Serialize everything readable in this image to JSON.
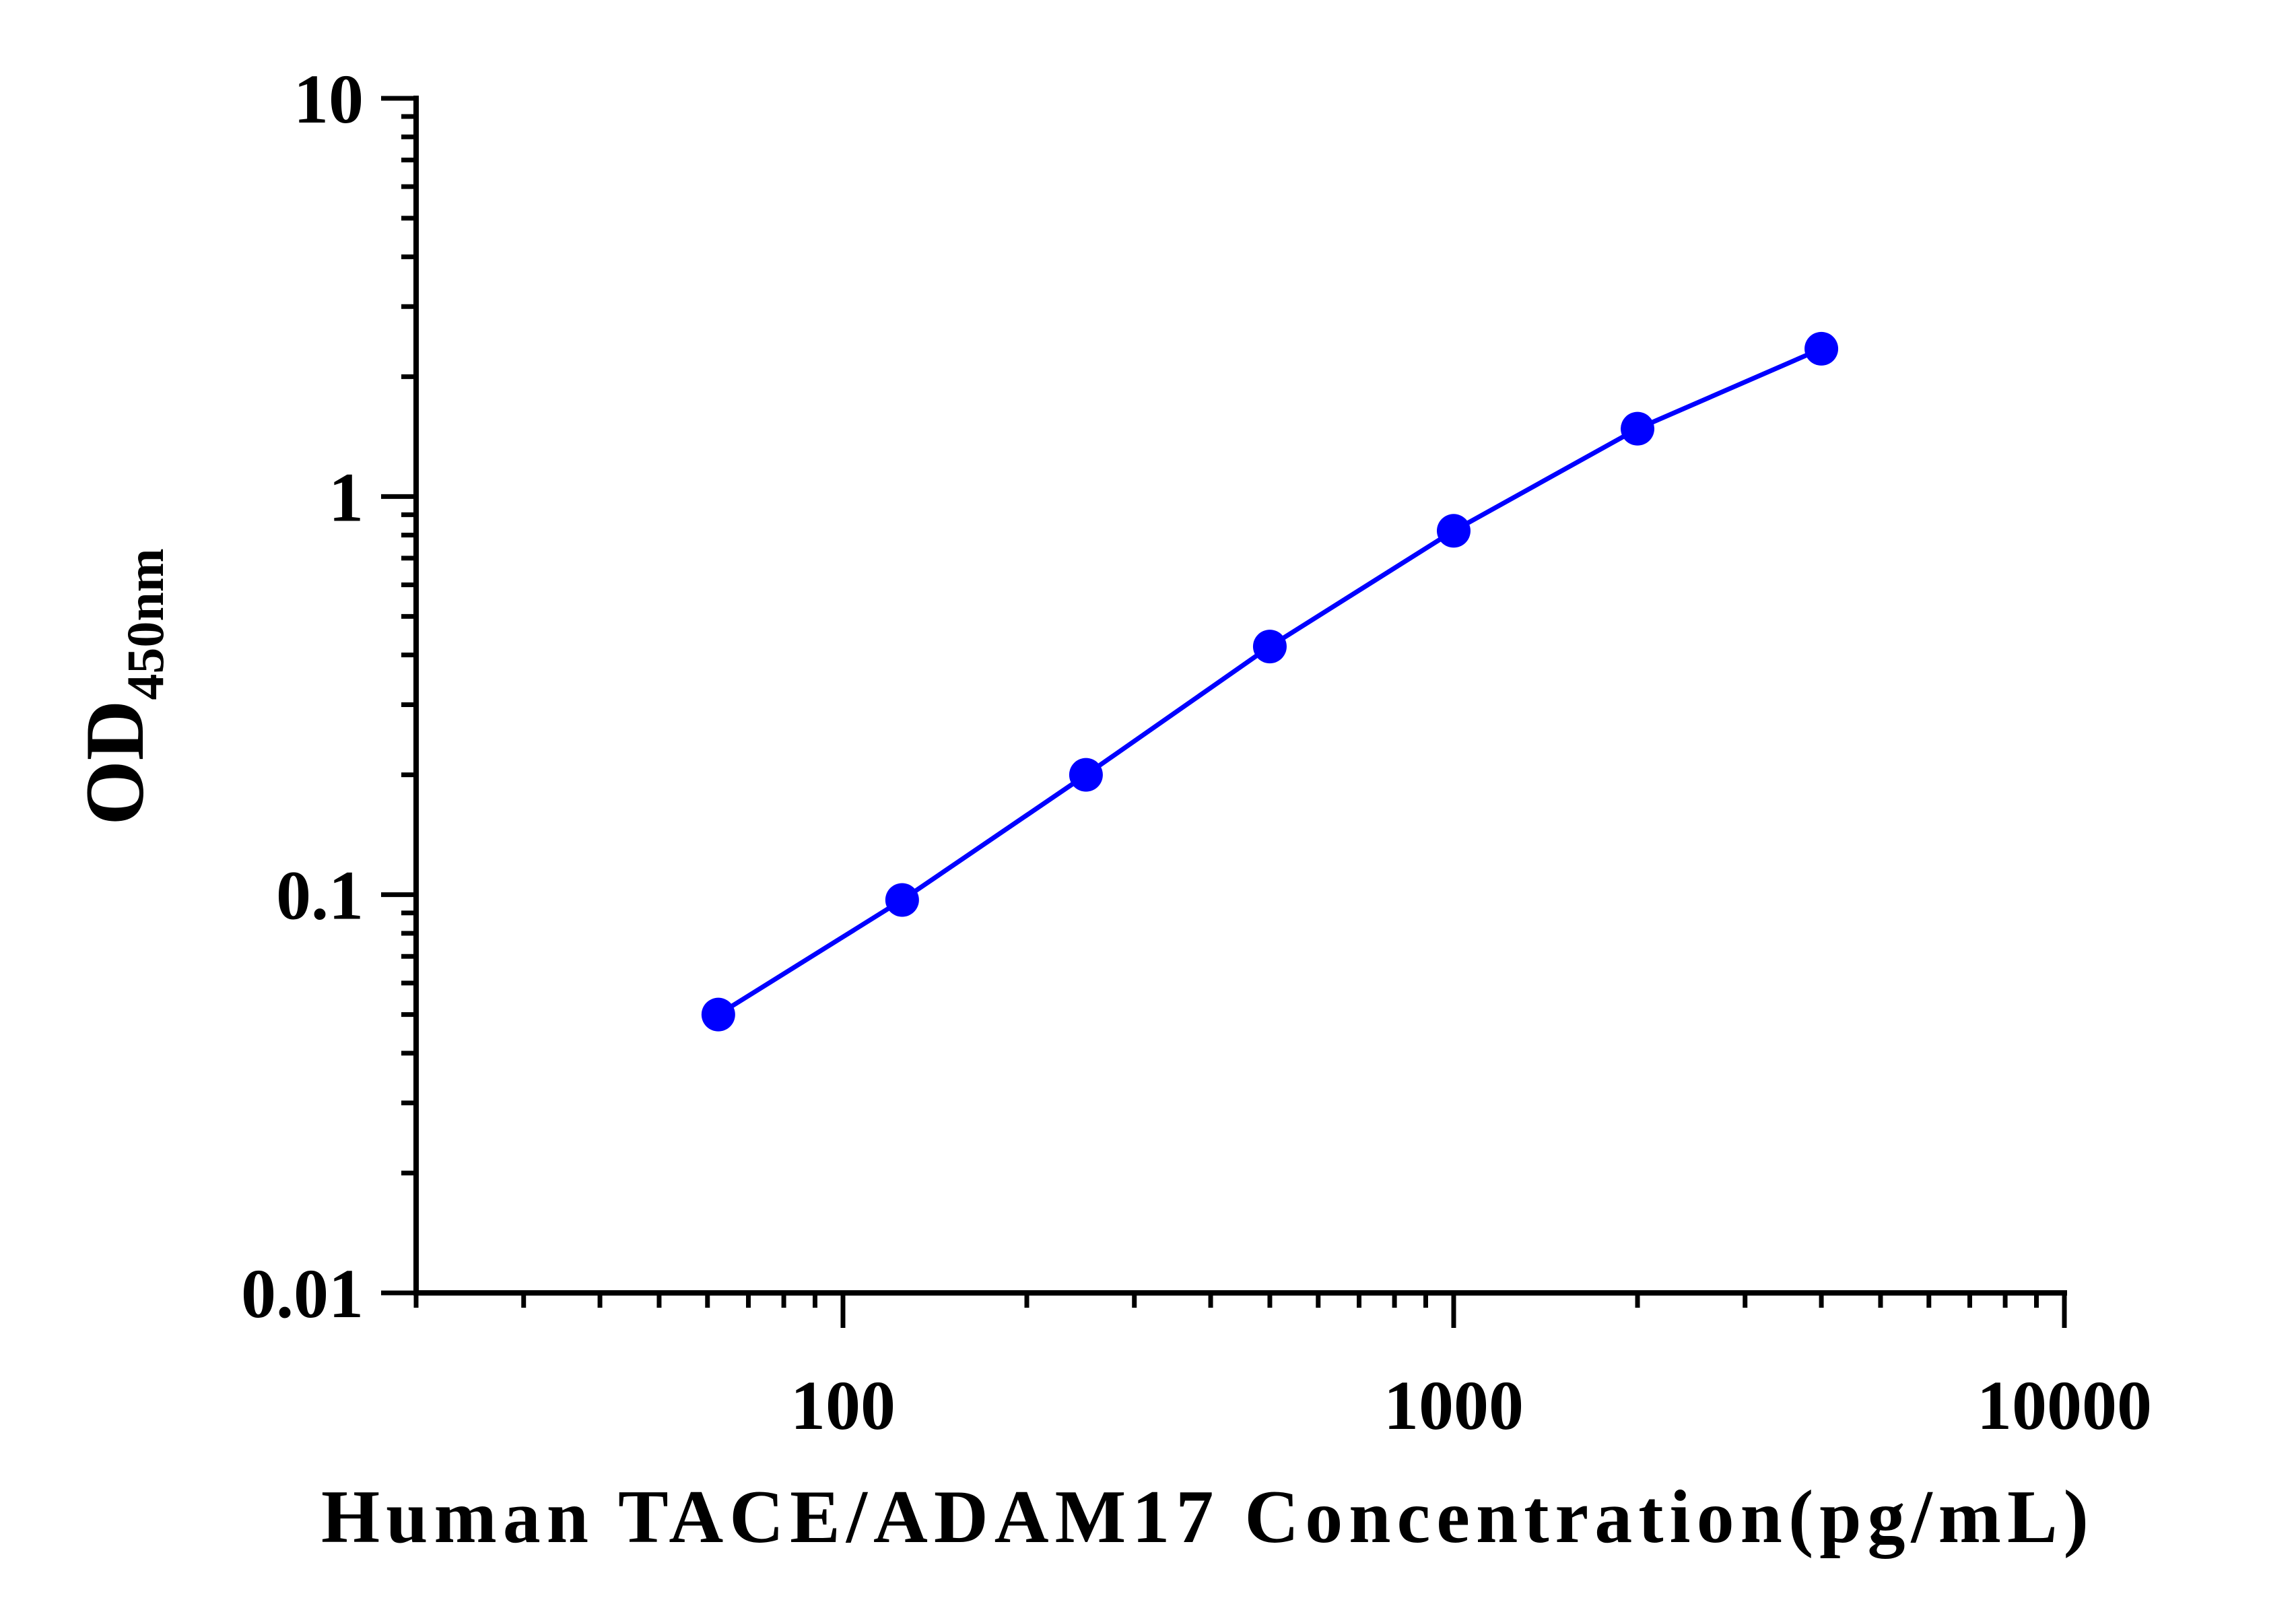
{
  "chart_data": {
    "type": "line",
    "xlabel": "Human TACE/ADAM17 Concentration(pg/mL)",
    "ylabel": {
      "main": "OD",
      "subscript": "450nm"
    },
    "x_scale": "log",
    "y_scale": "log",
    "xlim": [
      20,
      10000
    ],
    "ylim": [
      0.01,
      10
    ],
    "x_tick_labels": [
      {
        "value": 100,
        "label": "100"
      },
      {
        "value": 1000,
        "label": "1000"
      },
      {
        "value": 10000,
        "label": "10000"
      }
    ],
    "y_tick_labels": [
      {
        "value": 0.01,
        "label": "0.01"
      },
      {
        "value": 0.1,
        "label": "0.1"
      },
      {
        "value": 1,
        "label": "1"
      },
      {
        "value": 10,
        "label": "10"
      }
    ],
    "grid": false,
    "legend": "none",
    "series": [
      {
        "color": "#0000ff",
        "x": [
          62.5,
          125,
          250,
          500,
          1000,
          2000,
          4000
        ],
        "y": [
          0.05,
          0.097,
          0.2,
          0.42,
          0.82,
          1.48,
          2.35
        ]
      }
    ]
  }
}
